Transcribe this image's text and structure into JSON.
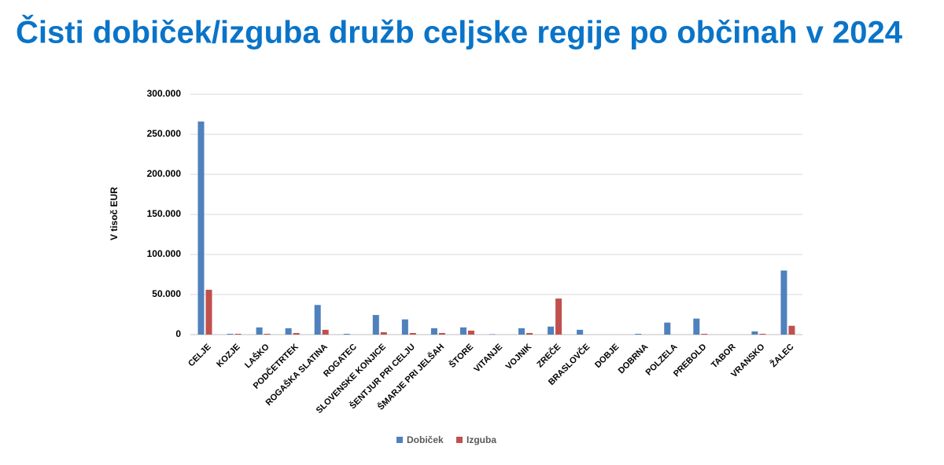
{
  "chart_data": {
    "type": "bar",
    "title": "Čisti dobiček/izguba družb celjske regije po občinah v 2024",
    "y_label": "V tisoč EUR",
    "categories": [
      "CELJE",
      "KOZJE",
      "LAŠKO",
      "PODČETRTEK",
      "ROGAŠKA SLATINA",
      "ROGATEC",
      "SLOVENSKE KONJICE",
      "ŠENTJUR PRI CELJU",
      "ŠMARJE PRI JELŠAH",
      "ŠTORE",
      "VITANJE",
      "VOJNIK",
      "ZREČE",
      "BRASLOVČE",
      "DOBJE",
      "DOBRNA",
      "POLZELA",
      "PREBOLD",
      "TABOR",
      "VRANSKO",
      "ŽALEC"
    ],
    "series": [
      {
        "name": "Dobiček",
        "color": "#4f81bd",
        "values": [
          266000,
          1000,
          9000,
          8000,
          37000,
          1000,
          24500,
          19000,
          8000,
          9000,
          500,
          8000,
          10000,
          6000,
          0,
          1000,
          15000,
          20000,
          0,
          4000,
          80000
        ]
      },
      {
        "name": "Izguba",
        "color": "#c0504d",
        "values": [
          56000,
          1000,
          1000,
          2000,
          6000,
          0,
          3000,
          2000,
          2000,
          5000,
          0,
          2000,
          45000,
          0,
          0,
          0,
          0,
          1000,
          0,
          1000,
          11000
        ]
      }
    ],
    "ylim": [
      0,
      300000
    ],
    "yticks": [
      0,
      {
        "value": 50000,
        "label": "50.000"
      },
      {
        "value": 100000,
        "label": "100.000"
      },
      {
        "value": 150000,
        "label": "150.000"
      },
      {
        "value": 200000,
        "label": "200.000"
      },
      {
        "value": 250000,
        "label": "250.000"
      },
      {
        "value": 300000,
        "label": "300.000"
      }
    ],
    "grid": true,
    "legend": "bottom"
  }
}
